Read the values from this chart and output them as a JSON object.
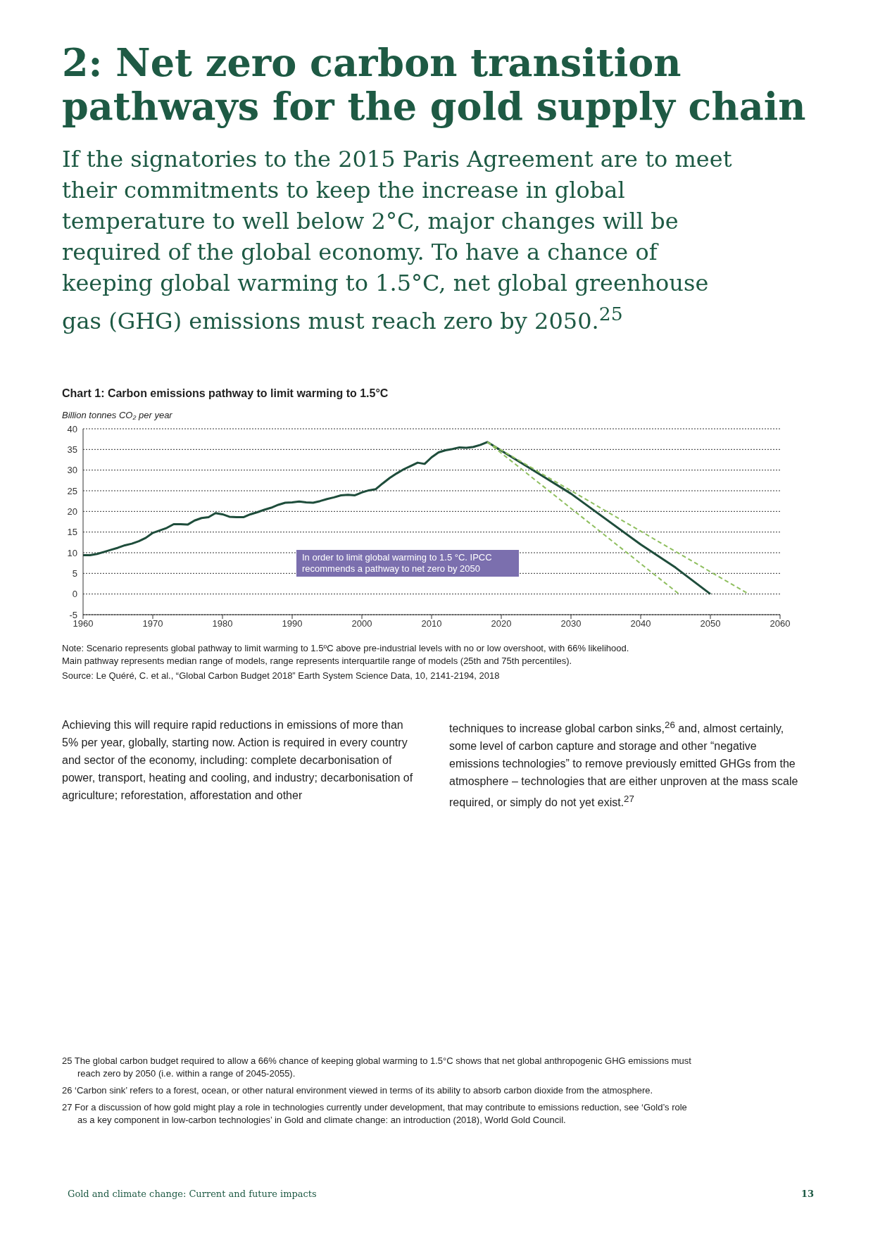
{
  "chart_data": {
    "type": "line",
    "title": "Chart 1: Carbon emissions pathway to limit warming to 1.5°C",
    "ylabel": "Billion tonnes CO₂ per year",
    "annotations": [
      "2: Net zero carbon transition pathways for the gold supply chain",
      "If the signatories to the 2015 Paris Agreement are to meet their commitments to keep the increase in global temperature to well below 2°C, major changes will be required of the global economy. To have a chance of keeping global warming to 1.5°C, net global greenhouse gas (GHG) emissions must reach zero by 2050.$^{25}$",
      "In order to limit global warming to 1.5 °C. IPCC recommends a pathway to net zero by 2050",
      "Note: Scenario represents global pathway to limit warming to 1.5ºC above pre-industrial levels with no or low overshoot, with 66% likelihood.",
      "Main pathway represents median range of models, range represents interquartile range of models (25th and 75th percentiles).",
      "Source: Le Quéré, C. et al., “Global Carbon Budget 2018” Earth System Science Data, 10, 2141-2194, 2018",
      "Achieving this will require rapid reductions in emissions of more than 5% per year, globally, starting now. Action is required in every country and sector of the economy, including: complete decarbonisation of power, transport, heating and cooling, and industry; decarbonisation of agriculture; reforestation, afforestation and other",
      "techniques to increase global carbon sinks,$^{26}$ and, almost certainly, some level of carbon capture and storage and other “negative emissions technologies” to remove previously emitted GHGs from the atmosphere – technologies that are either unproven at the mass scale required, or simply do not yet exist.$^{27}$",
      "25  The global carbon budget required to allow a 66% chance of keeping global warming to 1.5°C shows that net global anthropogenic GHG emissions must reach zero by 2050 (i.e. within a range of 2045-2055).",
      "26  ‘Carbon sink’ refers to a forest, ocean, or other natural environment viewed in terms of its ability to absorb carbon dioxide from the atmosphere.",
      "27  For a discussion of how gold might play a role in technologies currently under development, that may contribute to emissions reduction, see ‘Gold’s role as a key component in low-carbon technologies’ in Gold and climate change: an introduction (2018), World Gold Council.",
      "Gold and climate change: Current and future impacts",
      "13"
    ],
    "series": [
      {
        "color": "#1e4d3b",
        "line_style": "solid",
        "x": [
          1960,
          1961,
          1962,
          1963,
          1964,
          1965,
          1966,
          1967,
          1968,
          1969,
          1970,
          1971,
          1972,
          1973,
          1974,
          1975,
          1976,
          1977,
          1978,
          1979,
          1980,
          1981,
          1982,
          1983,
          1984,
          1985,
          1986,
          1987,
          1988,
          1989,
          1990,
          1991,
          1992,
          1993,
          1994,
          1995,
          1996,
          1997,
          1998,
          1999,
          2000,
          2001,
          2002,
          2003,
          2004,
          2005,
          2006,
          2007,
          2008,
          2009,
          2010,
          2011,
          2012,
          2013,
          2014,
          2015,
          2016,
          2017,
          2018,
          2030,
          2040,
          2045,
          2050
        ],
        "values": [
          9.4,
          9.4,
          9.7,
          10.2,
          10.7,
          11.2,
          11.8,
          12.2,
          12.8,
          13.6,
          14.8,
          15.4,
          16.0,
          16.9,
          16.9,
          16.8,
          17.8,
          18.4,
          18.6,
          19.6,
          19.3,
          18.7,
          18.6,
          18.6,
          19.3,
          19.8,
          20.4,
          20.9,
          21.6,
          22.1,
          22.2,
          22.4,
          22.2,
          22.1,
          22.5,
          23.0,
          23.4,
          23.9,
          24.0,
          23.9,
          24.6,
          25.1,
          25.4,
          26.8,
          28.1,
          29.2,
          30.2,
          31.0,
          31.8,
          31.5,
          33.1,
          34.3,
          34.8,
          35.1,
          35.5,
          35.4,
          35.6,
          36.1,
          36.8,
          24.3,
          12.0,
          6.4,
          0
        ]
      },
      {
        "color": "#8fbf5f",
        "line_style": "dashed",
        "x": [
          2018,
          2055.5
        ],
        "values": [
          36.8,
          0
        ]
      },
      {
        "color": "#8fbf5f",
        "line_style": "dashed",
        "x": [
          2018,
          2045.5
        ],
        "values": [
          36.8,
          0
        ]
      }
    ],
    "xlim": [
      1960,
      2060
    ],
    "xticks": [
      1960,
      1970,
      1980,
      1990,
      2000,
      2010,
      2020,
      2030,
      2040,
      2050,
      2060
    ],
    "ylim": [
      -5,
      40
    ],
    "yticks": [
      -5,
      0,
      5,
      10,
      15,
      20,
      25,
      30,
      35,
      40
    ],
    "grid": "y",
    "marker": "none"
  }
}
